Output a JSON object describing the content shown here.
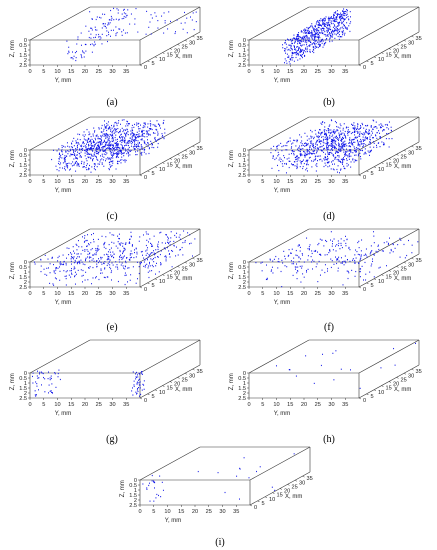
{
  "chart_data": [
    {
      "type": "scatter",
      "panel_label": "(a)",
      "ylabel": "Y, mm",
      "xlabel": "X, mm",
      "zlabel": "Z, mm",
      "yticks": [
        0,
        5,
        10,
        15,
        20,
        25,
        30,
        35
      ],
      "xticks": [
        0,
        5,
        10,
        15,
        20,
        25,
        30,
        35
      ],
      "zticks": [
        0,
        0.5,
        1,
        1.5,
        2,
        2.5
      ],
      "yrange": [
        0,
        40
      ],
      "xrange": [
        0,
        40
      ],
      "zrange": [
        0,
        2.5
      ],
      "density": 0.18,
      "clusters": [
        {
          "x": [
            0,
            40
          ],
          "y": [
            13,
            15
          ],
          "z": [
            0,
            2.5
          ],
          "w": 0.6
        },
        {
          "x": [
            36,
            40
          ],
          "y": [
            0,
            40
          ],
          "z": [
            0,
            2.5
          ],
          "w": 0.4
        }
      ]
    },
    {
      "type": "scatter",
      "panel_label": "(b)",
      "ylabel": "Y, mm",
      "xlabel": "X, mm",
      "zlabel": "Z, mm",
      "yticks": [
        0,
        5,
        10,
        15,
        20,
        25,
        30,
        35
      ],
      "xticks": [
        0,
        5,
        10,
        15,
        20,
        25,
        30,
        35
      ],
      "zticks": [
        0,
        0.5,
        1,
        1.5,
        2,
        2.5
      ],
      "yrange": [
        0,
        40
      ],
      "xrange": [
        0,
        40
      ],
      "zrange": [
        0,
        2.5
      ],
      "density": 0.7,
      "clusters": [
        {
          "x": [
            0,
            40
          ],
          "y": [
            11,
            16
          ],
          "z": [
            0,
            2.5
          ],
          "w": 1
        }
      ]
    },
    {
      "type": "scatter",
      "panel_label": "(c)",
      "ylabel": "Y, mm",
      "xlabel": "X, mm",
      "zlabel": "Z, mm",
      "yticks": [
        0,
        5,
        10,
        15,
        20,
        25,
        30,
        35
      ],
      "xticks": [
        0,
        5,
        10,
        15,
        20,
        25,
        30,
        35
      ],
      "zticks": [
        0,
        0.5,
        1,
        1.5,
        2,
        2.5
      ],
      "yrange": [
        0,
        40
      ],
      "xrange": [
        0,
        40
      ],
      "zrange": [
        0,
        2.5
      ],
      "density": 1.0,
      "clusters": [
        {
          "x": [
            2,
            38
          ],
          "y": [
            6,
            30
          ],
          "z": [
            0,
            2.5
          ],
          "w": 1
        }
      ]
    },
    {
      "type": "scatter",
      "panel_label": "(d)",
      "ylabel": "Y, mm",
      "xlabel": "X, mm",
      "zlabel": "Z, mm",
      "yticks": [
        0,
        5,
        10,
        15,
        20,
        25,
        30,
        35
      ],
      "xticks": [
        0,
        5,
        10,
        15,
        20,
        25,
        30,
        35
      ],
      "zticks": [
        0,
        0.5,
        1,
        1.5,
        2,
        2.5
      ],
      "yrange": [
        0,
        40
      ],
      "xrange": [
        0,
        40
      ],
      "zrange": [
        0,
        2.5
      ],
      "density": 0.95,
      "clusters": [
        {
          "x": [
            2,
            38
          ],
          "y": [
            6,
            32
          ],
          "z": [
            0,
            2.5
          ],
          "w": 1
        }
      ]
    },
    {
      "type": "scatter",
      "panel_label": "(e)",
      "ylabel": "Y, mm",
      "xlabel": "X, mm",
      "zlabel": "Z, mm",
      "yticks": [
        0,
        5,
        10,
        15,
        20,
        25,
        30,
        35
      ],
      "xticks": [
        0,
        5,
        10,
        15,
        20,
        25,
        30,
        35
      ],
      "zticks": [
        0,
        0.5,
        1,
        1.5,
        2,
        2.5
      ],
      "yrange": [
        0,
        40
      ],
      "xrange": [
        0,
        40
      ],
      "zrange": [
        0,
        2.5
      ],
      "density": 0.55,
      "clusters": [
        {
          "x": [
            0,
            40
          ],
          "y": [
            0,
            40
          ],
          "z": [
            0,
            2.5
          ],
          "w": 1
        }
      ]
    },
    {
      "type": "scatter",
      "panel_label": "(f)",
      "ylabel": "Y, mm",
      "xlabel": "X, mm",
      "zlabel": "Z, mm",
      "yticks": [
        0,
        5,
        10,
        15,
        20,
        25,
        30,
        35
      ],
      "xticks": [
        0,
        5,
        10,
        15,
        20,
        25,
        30,
        35
      ],
      "zticks": [
        0,
        0.5,
        1,
        1.5,
        2,
        2.5
      ],
      "yrange": [
        0,
        40
      ],
      "xrange": [
        0,
        40
      ],
      "zrange": [
        0,
        2.5
      ],
      "density": 0.3,
      "clusters": [
        {
          "x": [
            0,
            40
          ],
          "y": [
            0,
            40
          ],
          "z": [
            0,
            2.5
          ],
          "w": 1
        }
      ]
    },
    {
      "type": "scatter",
      "panel_label": "(g)",
      "ylabel": "Y, mm",
      "xlabel": "X, mm",
      "zlabel": "Z, mm",
      "yticks": [
        0,
        5,
        10,
        15,
        20,
        25,
        30,
        35
      ],
      "xticks": [
        0,
        5,
        10,
        15,
        20,
        25,
        30,
        35
      ],
      "zticks": [
        0,
        0.5,
        1,
        1.5,
        2,
        2.5
      ],
      "yrange": [
        0,
        40
      ],
      "xrange": [
        0,
        40
      ],
      "zrange": [
        0,
        2.5
      ],
      "density": 0.1,
      "clusters": [
        {
          "x": [
            0,
            6
          ],
          "y": [
            0,
            8
          ],
          "z": [
            0,
            2.5
          ],
          "w": 0.5
        },
        {
          "x": [
            0,
            4
          ],
          "y": [
            36,
            40
          ],
          "z": [
            0,
            2.5
          ],
          "w": 0.5
        }
      ]
    },
    {
      "type": "scatter",
      "panel_label": "(h)",
      "ylabel": "Y, mm",
      "xlabel": "X, mm",
      "zlabel": "Z, mm",
      "yticks": [
        0,
        5,
        10,
        15,
        20,
        25,
        30,
        35
      ],
      "xticks": [
        0,
        5,
        10,
        15,
        20,
        25,
        30,
        35
      ],
      "zticks": [
        0,
        0.5,
        1,
        1.5,
        2,
        2.5
      ],
      "yrange": [
        0,
        40
      ],
      "xrange": [
        0,
        40
      ],
      "zrange": [
        0,
        2.5
      ],
      "density": 0.02,
      "clusters": [
        {
          "x": [
            0,
            40
          ],
          "y": [
            0,
            40
          ],
          "z": [
            0,
            2.5
          ],
          "w": 1
        }
      ]
    },
    {
      "type": "scatter",
      "panel_label": "(i)",
      "ylabel": "Y, mm",
      "xlabel": "X, mm",
      "zlabel": "Z, mm",
      "yticks": [
        0,
        5,
        10,
        15,
        20,
        25,
        30,
        35
      ],
      "xticks": [
        0,
        5,
        10,
        15,
        20,
        25,
        30,
        35
      ],
      "zticks": [
        0,
        0.5,
        1,
        1.5,
        2,
        2.5
      ],
      "yrange": [
        0,
        40
      ],
      "xrange": [
        0,
        40
      ],
      "zrange": [
        0,
        2.5
      ],
      "density": 0.04,
      "clusters": [
        {
          "x": [
            0,
            8
          ],
          "y": [
            0,
            6
          ],
          "z": [
            0,
            2.5
          ],
          "w": 0.6
        },
        {
          "x": [
            0,
            40
          ],
          "y": [
            0,
            40
          ],
          "z": [
            0,
            2.5
          ],
          "w": 0.4
        }
      ]
    }
  ],
  "colors": {
    "points": "#0a10e8",
    "box": "#333333"
  }
}
